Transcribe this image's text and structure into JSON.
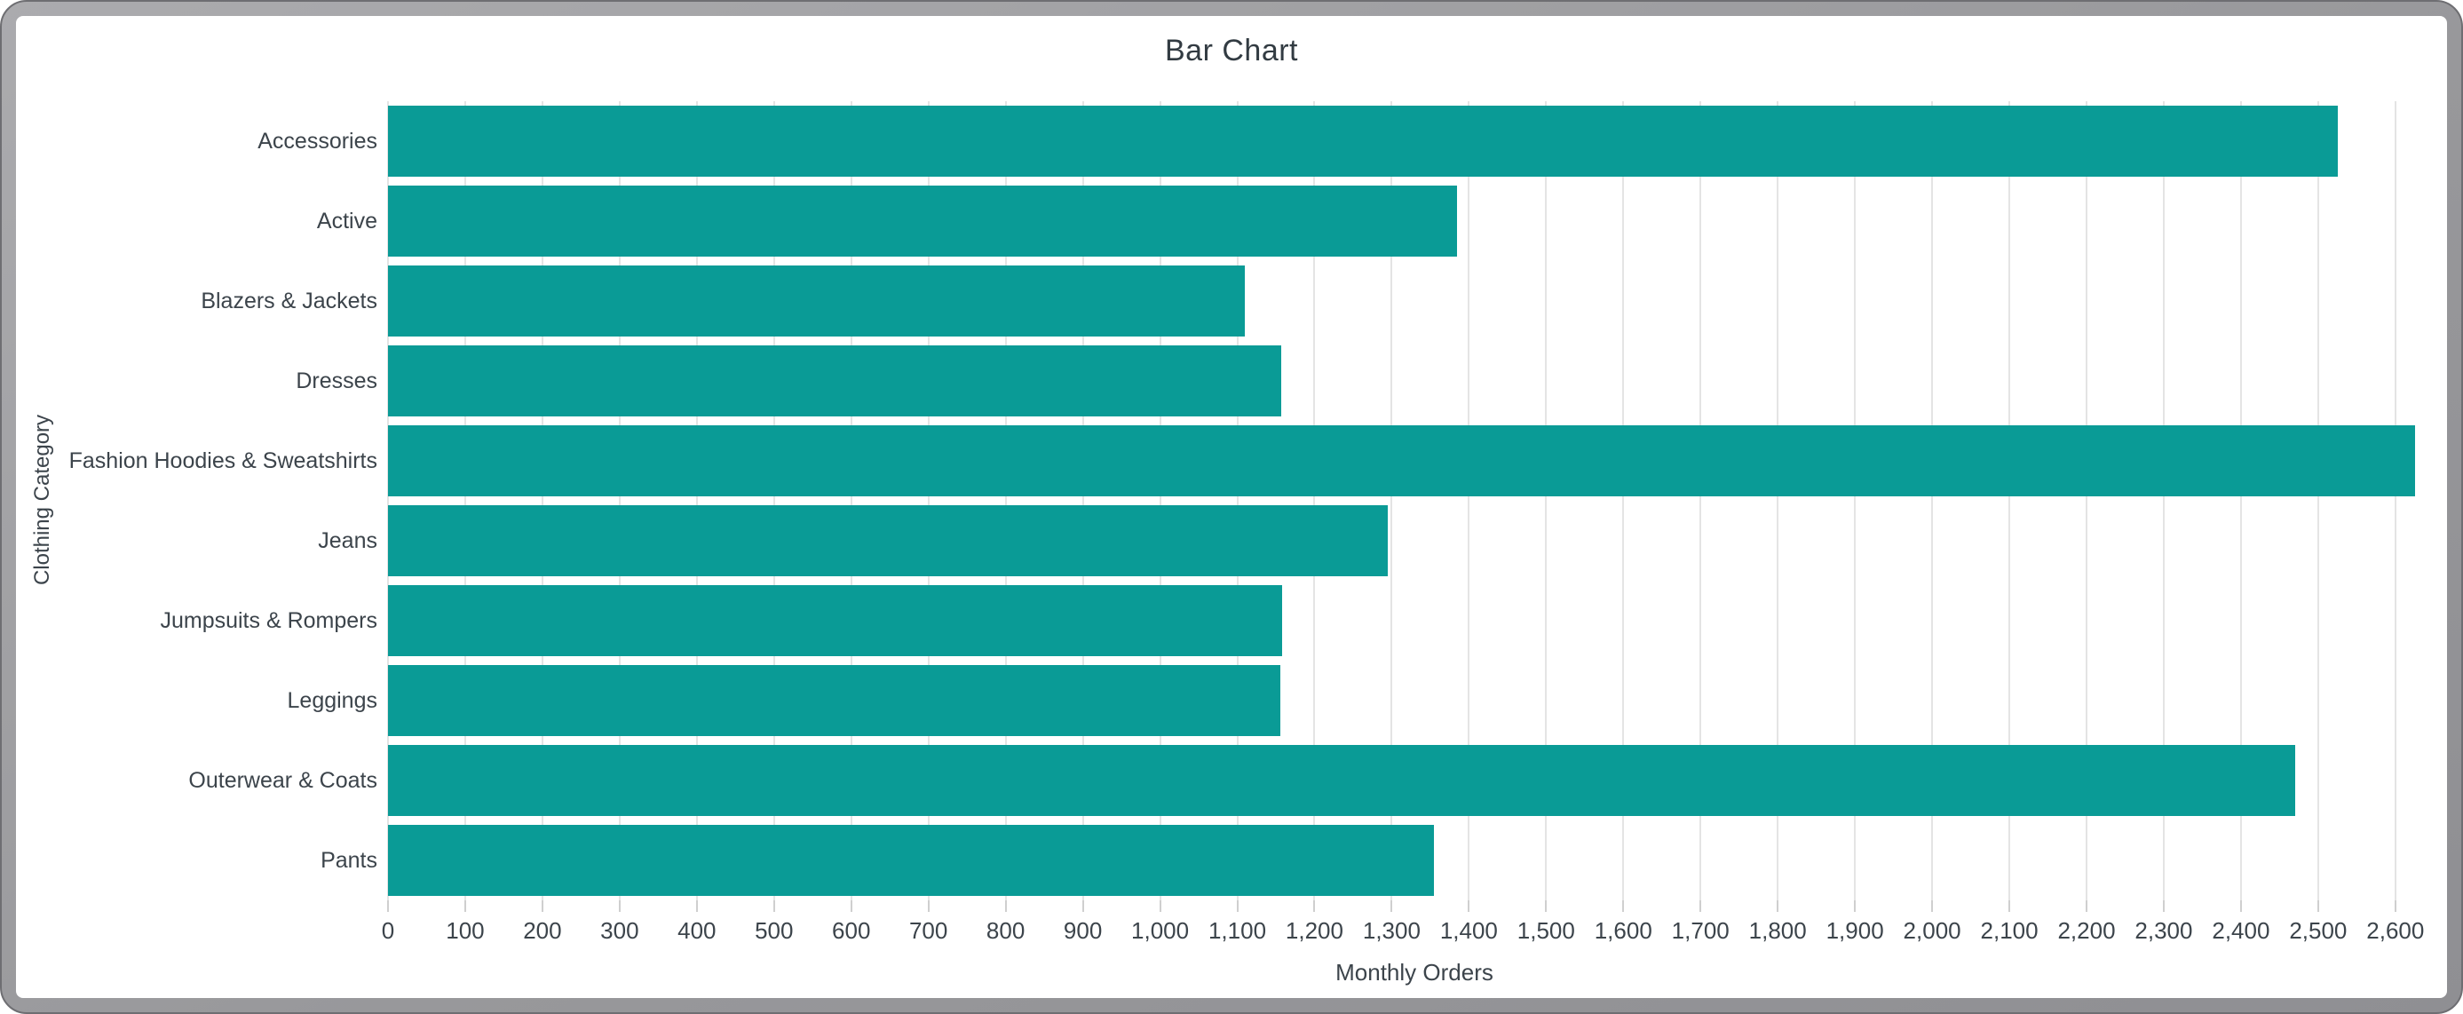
{
  "window": {
    "title": "Bar Chart"
  },
  "chart_data": {
    "type": "bar",
    "orientation": "horizontal",
    "title": "Bar Chart",
    "xlabel": "Monthly Orders",
    "ylabel": "Clothing Category",
    "categories": [
      "Accessories",
      "Active",
      "Blazers & Jackets",
      "Dresses",
      "Fashion Hoodies & Sweatshirts",
      "Jeans",
      "Jumpsuits & Rompers",
      "Leggings",
      "Outerwear & Coats",
      "Pants"
    ],
    "values": [
      2525,
      1385,
      1110,
      1157,
      2625,
      1295,
      1158,
      1156,
      2470,
      1355
    ],
    "xlim": [
      0,
      2660
    ],
    "xticks": [
      0,
      100,
      200,
      300,
      400,
      500,
      600,
      700,
      800,
      900,
      1000,
      1100,
      1200,
      1300,
      1400,
      1500,
      1600,
      1700,
      1800,
      1900,
      2000,
      2100,
      2200,
      2300,
      2400,
      2500,
      2600
    ],
    "tick_label_format": "thousands-comma",
    "grid": true,
    "legend": "none",
    "bar_color": "#0a9b96",
    "grid_color": "#e4e4e4",
    "tick_color": "#cfcfcf",
    "text_color": "#3c444b",
    "frame_color": "#9b9b9e"
  }
}
